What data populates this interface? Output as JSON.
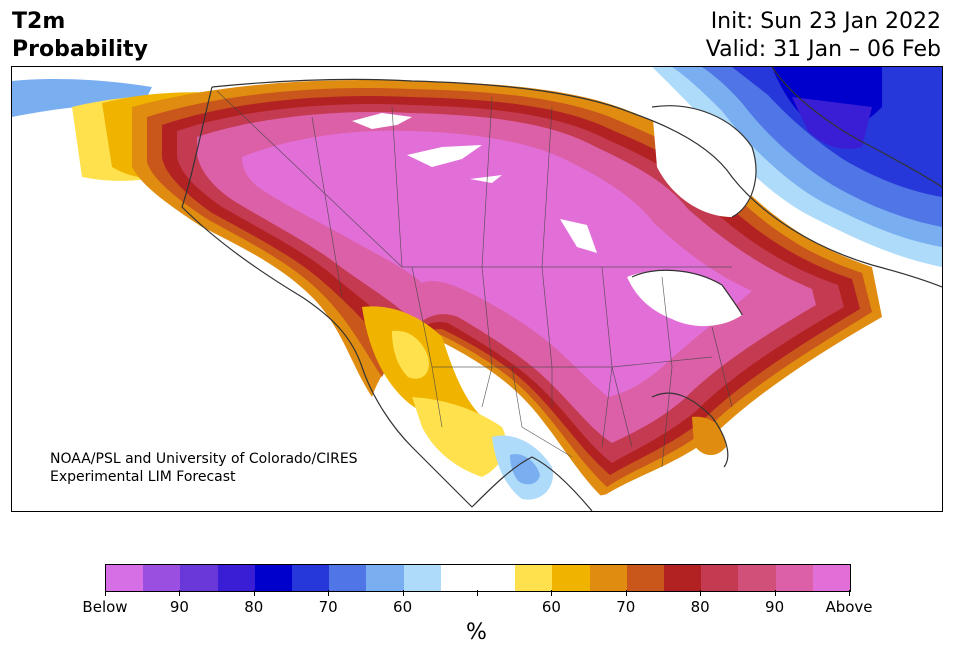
{
  "header": {
    "title_line1": "T2m",
    "title_line2": "Probability",
    "init_line": "Init: Sun 23 Jan 2022",
    "valid_line": "Valid: 31 Jan – 06 Feb"
  },
  "credit": {
    "line1": "NOAA/PSL and University of Colorado/CIRES",
    "line2": "Experimental LIM Forecast"
  },
  "colorbar": {
    "colors": [
      "#d66fe6",
      "#9b4fe0",
      "#6a38d8",
      "#3a1ed6",
      "#0000cc",
      "#2638d9",
      "#4f75e6",
      "#79aef0",
      "#aedbfa",
      "#ffffff",
      "#ffffff",
      "#ffe14d",
      "#f0b400",
      "#e08c10",
      "#c9561a",
      "#b22222",
      "#c43a50",
      "#d1507a",
      "#dc60a8",
      "#e26fd8"
    ],
    "labels": [
      "Below",
      "90",
      "80",
      "70",
      "60",
      "",
      "60",
      "70",
      "80",
      "90",
      "Above"
    ],
    "unit": "%"
  },
  "map": {
    "colors": {
      "above_strong": "#e26fd8",
      "above_90": "#dc60a8",
      "above_80": "#c43a50",
      "above_75": "#b22222",
      "above_70": "#c9561a",
      "above_65": "#e08c10",
      "above_60": "#f0b400",
      "above_55": "#ffe14d",
      "below_55": "#aedbfa",
      "below_60": "#79aef0",
      "below_70": "#4f75e6",
      "below_80": "#2638d9",
      "below_90": "#0000cc",
      "below_95": "#3a1ed6",
      "land_outline": "#333333"
    }
  }
}
